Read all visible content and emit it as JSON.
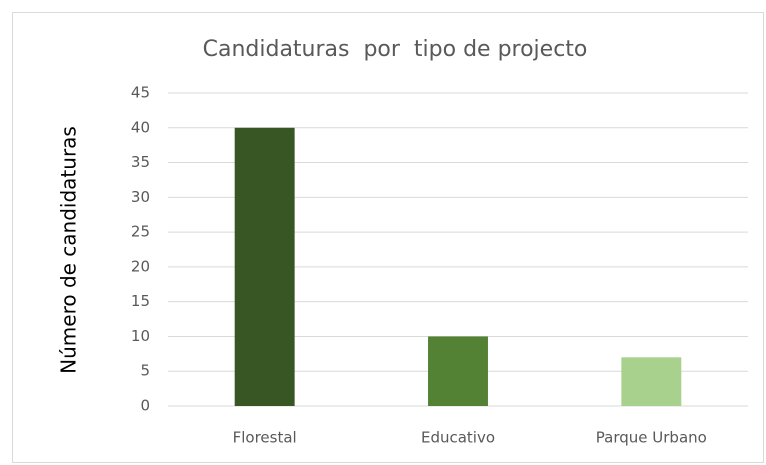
{
  "chart_data": {
    "type": "bar",
    "title": "Candidaturas  por  tipo de projecto",
    "y_label": "Número de candidaturas",
    "categories": [
      "Florestal",
      "Educativo",
      "Parque Urbano"
    ],
    "values": [
      40,
      10,
      7
    ],
    "colors": [
      "#375623",
      "#548235",
      "#a9d18e"
    ],
    "ylim": [
      0,
      45
    ],
    "yticks": [
      0,
      5,
      10,
      15,
      20,
      25,
      30,
      35,
      40,
      45
    ],
    "grid": true
  }
}
